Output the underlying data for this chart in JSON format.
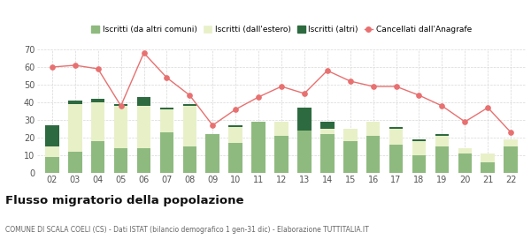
{
  "years": [
    "02",
    "03",
    "04",
    "05",
    "06",
    "07",
    "08",
    "09",
    "10",
    "11",
    "12",
    "13",
    "14",
    "15",
    "16",
    "17",
    "18",
    "19",
    "20",
    "21",
    "22"
  ],
  "iscritti_comuni": [
    9,
    12,
    18,
    14,
    14,
    23,
    15,
    22,
    17,
    29,
    21,
    24,
    22,
    18,
    21,
    16,
    10,
    15,
    11,
    6,
    15
  ],
  "iscritti_estero": [
    6,
    27,
    22,
    24,
    24,
    13,
    23,
    0,
    9,
    0,
    8,
    0,
    3,
    7,
    8,
    9,
    8,
    6,
    3,
    5,
    4
  ],
  "iscritti_altri": [
    12,
    2,
    2,
    1,
    5,
    1,
    1,
    0,
    1,
    0,
    0,
    13,
    4,
    0,
    0,
    1,
    1,
    1,
    0,
    0,
    0
  ],
  "cancellati": [
    60,
    61,
    59,
    38,
    68,
    54,
    44,
    27,
    36,
    43,
    49,
    45,
    58,
    52,
    49,
    49,
    44,
    38,
    29,
    37,
    23
  ],
  "color_comuni": "#8fba7f",
  "color_estero": "#e8f0c8",
  "color_altri": "#2d6a3f",
  "color_cancellati": "#e87070",
  "ylim": [
    0,
    70
  ],
  "yticks": [
    0,
    10,
    20,
    30,
    40,
    50,
    60,
    70
  ],
  "title": "Flusso migratorio della popolazione",
  "subtitle": "COMUNE DI SCALA COELI (CS) - Dati ISTAT (bilancio demografico 1 gen-31 dic) - Elaborazione TUTTITALIA.IT",
  "legend_labels": [
    "Iscritti (da altri comuni)",
    "Iscritti (dall'estero)",
    "Iscritti (altri)",
    "Cancellati dall'Anagrafe"
  ],
  "background_color": "#ffffff",
  "grid_color": "#d8d8d8"
}
